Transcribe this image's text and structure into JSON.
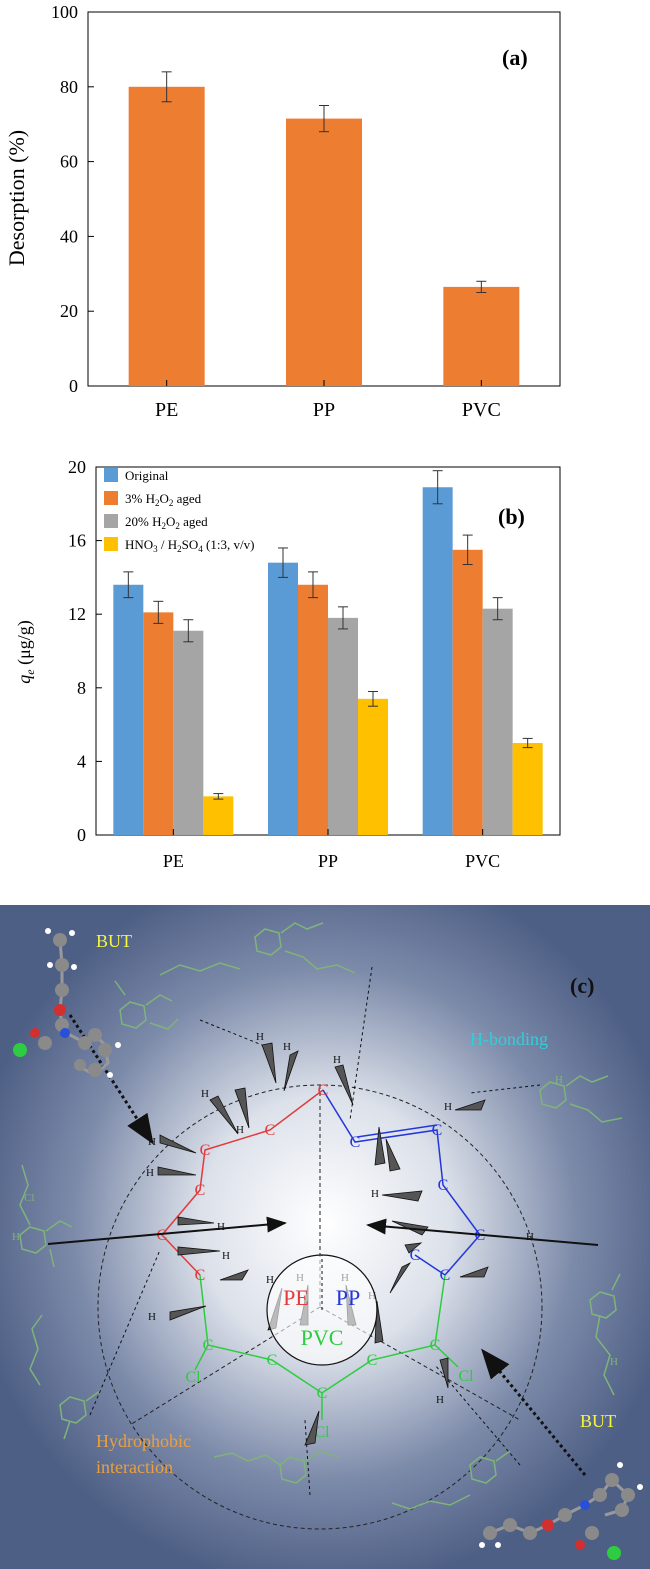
{
  "chart_data": [
    {
      "type": "bar",
      "panel_label": "(a)",
      "categories": [
        "PE",
        "PP",
        "PVC"
      ],
      "values": [
        80,
        71.5,
        26.5
      ],
      "errors": [
        4,
        3.5,
        1.5
      ],
      "ylabel": "Desorption (%)",
      "xlabel": "",
      "ylim": [
        0,
        100
      ],
      "yticks": [
        "0",
        "20",
        "40",
        "60",
        "80",
        "100"
      ],
      "ytick_values": [
        0,
        20,
        40,
        60,
        80,
        100
      ],
      "colors": {
        "bar": "#ED7D31"
      }
    },
    {
      "type": "bar",
      "panel_label": "(b)",
      "categories": [
        "PE",
        "PP",
        "PVC"
      ],
      "ylabel_main": "q",
      "ylabel_sub": "e",
      "ylabel_unit": " (μg/g)",
      "ylim": [
        0,
        20
      ],
      "yticks": [
        "0",
        "4",
        "8",
        "12",
        "16",
        "20"
      ],
      "ytick_values": [
        0,
        4,
        8,
        12,
        16,
        20
      ],
      "legend_position": "top-left",
      "series": [
        {
          "name": "Original",
          "legend": [
            [
              "Original",
              ""
            ]
          ],
          "color": "#5B9BD5",
          "values": [
            13.6,
            14.8,
            18.9
          ],
          "errors": [
            0.7,
            0.8,
            0.9
          ]
        },
        {
          "name": "3% H2O2 aged",
          "legend": [
            [
              "3% H",
              ""
            ],
            [
              "2",
              "sub"
            ],
            [
              "O",
              ""
            ],
            [
              "2",
              "sub"
            ],
            [
              " aged",
              ""
            ]
          ],
          "color": "#ED7D31",
          "values": [
            12.1,
            13.6,
            15.5
          ],
          "errors": [
            0.6,
            0.7,
            0.8
          ]
        },
        {
          "name": "20% H2O2 aged",
          "legend": [
            [
              "20% H",
              ""
            ],
            [
              "2",
              "sub"
            ],
            [
              "O",
              ""
            ],
            [
              "2",
              "sub"
            ],
            [
              " aged",
              ""
            ]
          ],
          "color": "#A5A5A5",
          "values": [
            11.1,
            11.8,
            12.3
          ],
          "errors": [
            0.6,
            0.6,
            0.6
          ]
        },
        {
          "name": "HNO3 / H2SO4 (1:3, v/v)",
          "legend": [
            [
              "HNO",
              ""
            ],
            [
              "3",
              "sub"
            ],
            [
              " / H",
              ""
            ],
            [
              "2",
              "sub"
            ],
            [
              "SO",
              ""
            ],
            [
              "4",
              "sub"
            ],
            [
              " (1:3, v/v)",
              ""
            ]
          ],
          "color": "#FFC000",
          "values": [
            2.1,
            7.4,
            5.0
          ],
          "errors": [
            0.15,
            0.4,
            0.25
          ]
        }
      ]
    }
  ],
  "panel_c": {
    "label": "(c)",
    "labels": {
      "but_top": "BUT",
      "but_bottom": "BUT",
      "h_bonding": "H-bonding",
      "hydrophobic_line1": "Hydrophobic",
      "hydrophobic_line2": "interaction",
      "pe": "PE",
      "pp": "PP",
      "pvc": "PVC"
    },
    "atoms": {
      "c": "C",
      "h": "H",
      "cl": "Cl"
    },
    "colors": {
      "background": "#4E5F85",
      "pe_chain": "#E23B3B",
      "pp_chain": "#2436D9",
      "pvc_chain": "#2ECC40",
      "but_text": "#F5F542",
      "h_bonding_text": "#2FD0D8",
      "hydrophobic_text": "#E8A040",
      "side_molecule": "#7FB37A"
    }
  }
}
